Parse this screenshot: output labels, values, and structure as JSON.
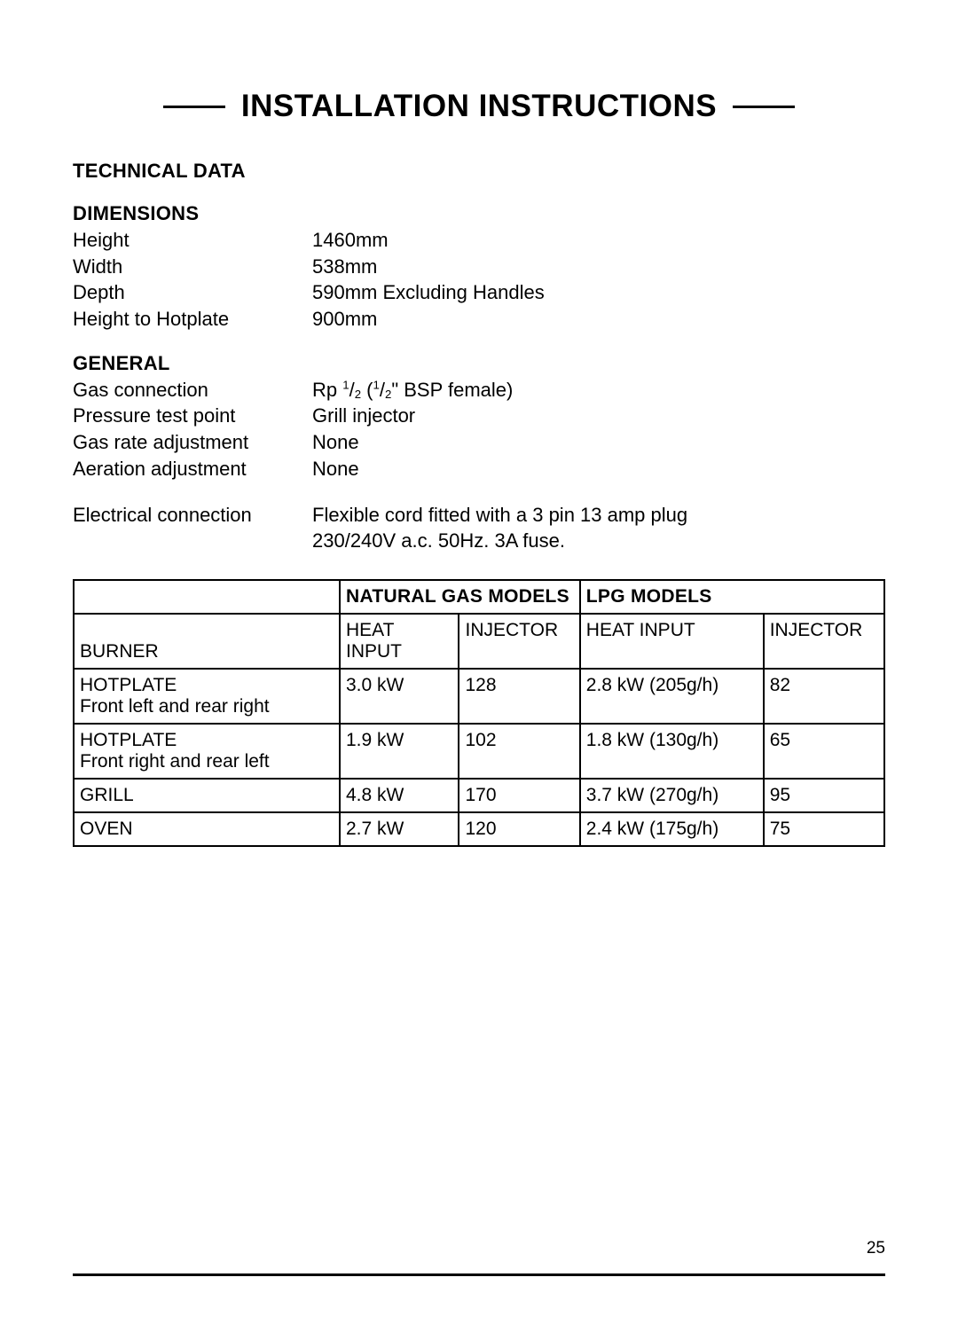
{
  "title": "INSTALLATION INSTRUCTIONS",
  "section_heading": "TECHNICAL DATA",
  "dimensions": {
    "heading": "DIMENSIONS",
    "rows": [
      {
        "label": "Height",
        "value": "1460mm"
      },
      {
        "label": "Width",
        "value": "538mm"
      },
      {
        "label": "Depth",
        "value": "590mm Excluding Handles"
      },
      {
        "label": "Height to Hotplate",
        "value": "900mm"
      }
    ]
  },
  "general": {
    "heading": "GENERAL",
    "rows": [
      {
        "label": "Gas connection",
        "value_html": "Rp <span class=\"frac-sup\">1</span>/<span class=\"frac-sub\">2</span> (<span class=\"frac-sup\">1</span>/<span class=\"frac-sub\">2</span>\" BSP female)"
      },
      {
        "label": "Pressure test point",
        "value": "Grill injector"
      },
      {
        "label": "Gas rate adjustment",
        "value": "None"
      },
      {
        "label": "Aeration adjustment",
        "value": "None"
      }
    ],
    "electrical": {
      "label": "Electrical connection",
      "value_line1": "Flexible cord fitted with a 3 pin 13 amp plug",
      "value_line2": "230/240V a.c. 50Hz. 3A fuse."
    }
  },
  "table": {
    "group_headers": [
      {
        "label": "NATURAL GAS MODELS",
        "colspan": 2
      },
      {
        "label": "LPG MODELS",
        "colspan": 2
      }
    ],
    "sub_headers_left_label": "BURNER",
    "sub_headers": [
      "HEAT INPUT",
      "INJECTOR",
      "HEAT INPUT",
      "INJECTOR"
    ],
    "rows": [
      {
        "burner_line1": "HOTPLATE",
        "burner_line2": "Front left and rear right",
        "ng_heat": "3.0 kW",
        "ng_inj": "128",
        "lpg_heat": "2.8 kW (205g/h)",
        "lpg_inj": "82"
      },
      {
        "burner_line1": "HOTPLATE",
        "burner_line2": "Front right and rear left",
        "ng_heat": "1.9 kW",
        "ng_inj": "102",
        "lpg_heat": "1.8 kW (130g/h)",
        "lpg_inj": "65"
      },
      {
        "burner_line1": "GRILL",
        "burner_line2": "",
        "ng_heat": "4.8 kW",
        "ng_inj": "170",
        "lpg_heat": "3.7 kW (270g/h)",
        "lpg_inj": "95"
      },
      {
        "burner_line1": "OVEN",
        "burner_line2": "",
        "ng_heat": "2.7 kW",
        "ng_inj": "120",
        "lpg_heat": "2.4 kW (175g/h)",
        "lpg_inj": "75"
      }
    ]
  },
  "page_number": "25",
  "colors": {
    "text": "#000000",
    "background": "#ffffff",
    "rule": "#000000",
    "table_border": "#000000"
  },
  "typography": {
    "title_fontsize_pt": 26,
    "heading_fontsize_pt": 16,
    "body_fontsize_pt": 16,
    "table_fontsize_pt": 15,
    "page_num_fontsize_pt": 14,
    "font_family": "Myriad Pro / sans-serif"
  }
}
